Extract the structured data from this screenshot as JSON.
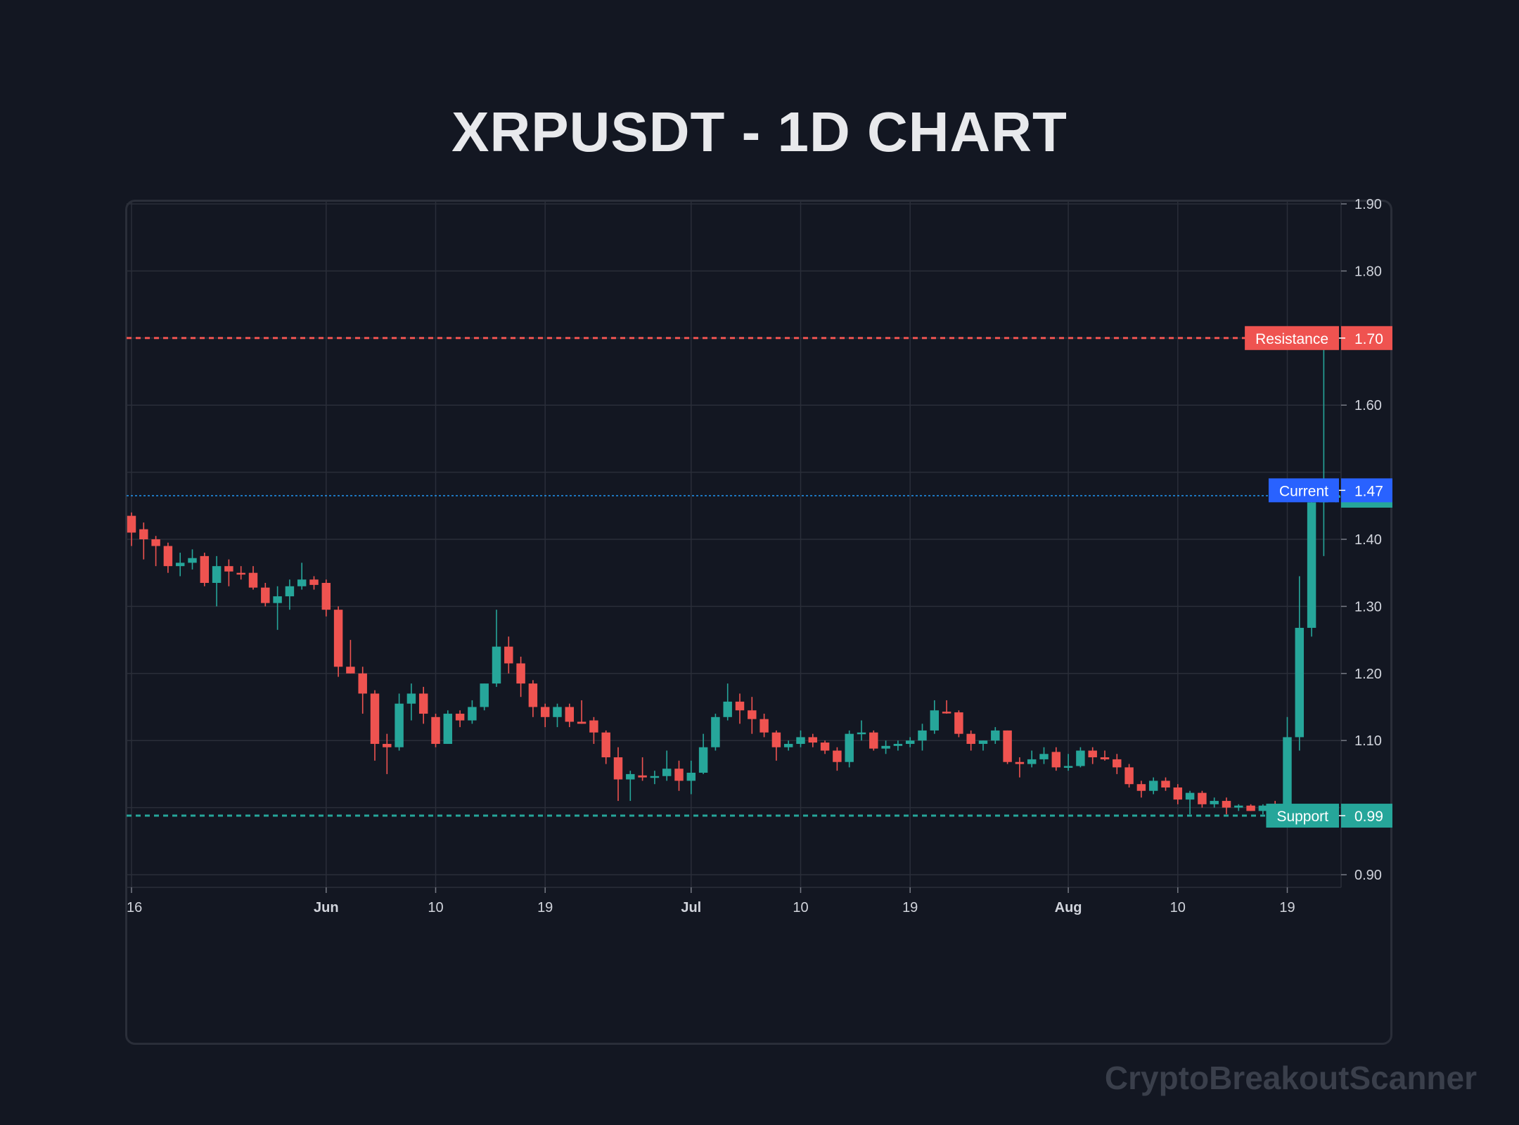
{
  "title": "XRPUSDT - 1D CHART",
  "watermark": "CryptoBreakoutScanner",
  "colors": {
    "background": "#131722",
    "grid": "#2a2e39",
    "up": "#26a69a",
    "down": "#ef5350",
    "resistance": "#ef5350",
    "support": "#26a69a",
    "current": "#2962ff",
    "last_price_line": "#2196f3"
  },
  "chart_data": {
    "type": "candlestick",
    "title": "XRPUSDT - 1D CHART",
    "xlabel": "",
    "ylabel": "",
    "ylim": [
      0.88,
      1.9
    ],
    "y_ticks": [
      "0.90",
      "1.10",
      "1.20",
      "1.30",
      "1.40",
      "1.60",
      "1.80",
      "1.90"
    ],
    "x_ticks": [
      {
        "label": "16",
        "index": 0,
        "major": false
      },
      {
        "label": "Jun",
        "index": 16,
        "major": true
      },
      {
        "label": "10",
        "index": 25,
        "major": false
      },
      {
        "label": "19",
        "index": 34,
        "major": false
      },
      {
        "label": "Jul",
        "index": 46,
        "major": true
      },
      {
        "label": "10",
        "index": 55,
        "major": false
      },
      {
        "label": "19",
        "index": 64,
        "major": false
      },
      {
        "label": "Aug",
        "index": 77,
        "major": true
      },
      {
        "label": "10",
        "index": 86,
        "major": false
      },
      {
        "label": "19",
        "index": 95,
        "major": false
      }
    ],
    "grid": true,
    "levels": [
      {
        "label": "Resistance",
        "value": 1.7,
        "value_label": "1.70",
        "style": "dashed",
        "color": "#ef5350"
      },
      {
        "label": "Support",
        "value": 0.988,
        "value_label": "0.99",
        "style": "dashed",
        "color": "#26a69a"
      },
      {
        "label": "Current",
        "value": 1.473,
        "value_label": "1.47",
        "style": "tag",
        "color": "#2962ff"
      }
    ],
    "last_price": {
      "value": 1.465,
      "value_label": "1.47"
    },
    "ohlc": [
      [
        1.435,
        1.44,
        1.39,
        1.41
      ],
      [
        1.415,
        1.425,
        1.37,
        1.4
      ],
      [
        1.4,
        1.405,
        1.36,
        1.39
      ],
      [
        1.39,
        1.395,
        1.35,
        1.36
      ],
      [
        1.36,
        1.38,
        1.345,
        1.365
      ],
      [
        1.365,
        1.385,
        1.355,
        1.372
      ],
      [
        1.375,
        1.38,
        1.33,
        1.335
      ],
      [
        1.335,
        1.375,
        1.3,
        1.36
      ],
      [
        1.36,
        1.37,
        1.33,
        1.352
      ],
      [
        1.35,
        1.36,
        1.34,
        1.348
      ],
      [
        1.35,
        1.36,
        1.325,
        1.328
      ],
      [
        1.328,
        1.335,
        1.3,
        1.305
      ],
      [
        1.305,
        1.33,
        1.265,
        1.315
      ],
      [
        1.315,
        1.34,
        1.295,
        1.33
      ],
      [
        1.33,
        1.365,
        1.325,
        1.34
      ],
      [
        1.34,
        1.345,
        1.325,
        1.332
      ],
      [
        1.335,
        1.34,
        1.285,
        1.295
      ],
      [
        1.295,
        1.3,
        1.195,
        1.21
      ],
      [
        1.21,
        1.25,
        1.2,
        1.2
      ],
      [
        1.2,
        1.21,
        1.14,
        1.17
      ],
      [
        1.17,
        1.175,
        1.07,
        1.095
      ],
      [
        1.095,
        1.11,
        1.05,
        1.09
      ],
      [
        1.09,
        1.17,
        1.085,
        1.155
      ],
      [
        1.155,
        1.185,
        1.13,
        1.17
      ],
      [
        1.17,
        1.18,
        1.125,
        1.14
      ],
      [
        1.135,
        1.14,
        1.09,
        1.095
      ],
      [
        1.095,
        1.145,
        1.095,
        1.14
      ],
      [
        1.14,
        1.145,
        1.12,
        1.13
      ],
      [
        1.13,
        1.16,
        1.125,
        1.15
      ],
      [
        1.15,
        1.185,
        1.145,
        1.185
      ],
      [
        1.185,
        1.295,
        1.18,
        1.24
      ],
      [
        1.24,
        1.255,
        1.2,
        1.215
      ],
      [
        1.215,
        1.225,
        1.165,
        1.185
      ],
      [
        1.185,
        1.19,
        1.135,
        1.15
      ],
      [
        1.15,
        1.155,
        1.12,
        1.135
      ],
      [
        1.135,
        1.155,
        1.12,
        1.15
      ],
      [
        1.15,
        1.155,
        1.12,
        1.128
      ],
      [
        1.128,
        1.16,
        1.125,
        1.125
      ],
      [
        1.13,
        1.135,
        1.095,
        1.112
      ],
      [
        1.112,
        1.115,
        1.065,
        1.075
      ],
      [
        1.075,
        1.09,
        1.01,
        1.042
      ],
      [
        1.042,
        1.055,
        1.01,
        1.05
      ],
      [
        1.048,
        1.075,
        1.04,
        1.045
      ],
      [
        1.045,
        1.055,
        1.035,
        1.047
      ],
      [
        1.047,
        1.085,
        1.04,
        1.058
      ],
      [
        1.058,
        1.07,
        1.025,
        1.04
      ],
      [
        1.04,
        1.07,
        1.02,
        1.052
      ],
      [
        1.052,
        1.11,
        1.05,
        1.09
      ],
      [
        1.09,
        1.14,
        1.085,
        1.135
      ],
      [
        1.135,
        1.185,
        1.13,
        1.158
      ],
      [
        1.158,
        1.17,
        1.125,
        1.145
      ],
      [
        1.145,
        1.165,
        1.11,
        1.132
      ],
      [
        1.132,
        1.14,
        1.105,
        1.112
      ],
      [
        1.112,
        1.115,
        1.07,
        1.09
      ],
      [
        1.09,
        1.1,
        1.085,
        1.095
      ],
      [
        1.095,
        1.115,
        1.09,
        1.105
      ],
      [
        1.105,
        1.11,
        1.09,
        1.097
      ],
      [
        1.097,
        1.1,
        1.08,
        1.085
      ],
      [
        1.085,
        1.09,
        1.055,
        1.068
      ],
      [
        1.068,
        1.115,
        1.06,
        1.11
      ],
      [
        1.11,
        1.13,
        1.1,
        1.112
      ],
      [
        1.112,
        1.115,
        1.085,
        1.088
      ],
      [
        1.088,
        1.1,
        1.08,
        1.092
      ],
      [
        1.092,
        1.1,
        1.085,
        1.095
      ],
      [
        1.095,
        1.105,
        1.09,
        1.1
      ],
      [
        1.1,
        1.125,
        1.085,
        1.115
      ],
      [
        1.115,
        1.16,
        1.11,
        1.145
      ],
      [
        1.143,
        1.16,
        1.14,
        1.142
      ],
      [
        1.142,
        1.145,
        1.105,
        1.11
      ],
      [
        1.11,
        1.115,
        1.085,
        1.095
      ],
      [
        1.095,
        1.1,
        1.085,
        1.1
      ],
      [
        1.1,
        1.12,
        1.095,
        1.115
      ],
      [
        1.115,
        1.115,
        1.065,
        1.068
      ],
      [
        1.068,
        1.075,
        1.045,
        1.065
      ],
      [
        1.065,
        1.085,
        1.06,
        1.072
      ],
      [
        1.072,
        1.09,
        1.065,
        1.08
      ],
      [
        1.083,
        1.09,
        1.055,
        1.06
      ],
      [
        1.06,
        1.08,
        1.055,
        1.062
      ],
      [
        1.062,
        1.09,
        1.06,
        1.085
      ],
      [
        1.085,
        1.09,
        1.065,
        1.075
      ],
      [
        1.075,
        1.085,
        1.07,
        1.072
      ],
      [
        1.072,
        1.08,
        1.05,
        1.06
      ],
      [
        1.06,
        1.065,
        1.03,
        1.035
      ],
      [
        1.035,
        1.04,
        1.015,
        1.025
      ],
      [
        1.025,
        1.045,
        1.02,
        1.04
      ],
      [
        1.04,
        1.045,
        1.025,
        1.03
      ],
      [
        1.03,
        1.035,
        1.005,
        1.012
      ],
      [
        1.012,
        1.025,
        0.99,
        1.022
      ],
      [
        1.022,
        1.025,
        1.0,
        1.005
      ],
      [
        1.005,
        1.015,
        1.0,
        1.01
      ],
      [
        1.01,
        1.015,
        0.99,
        1.0
      ],
      [
        1.0,
        1.005,
        0.995,
        1.003
      ],
      [
        1.003,
        1.005,
        0.995,
        0.995
      ],
      [
        0.995,
        1.005,
        0.99,
        1.003
      ],
      [
        1.0,
        1.01,
        0.99,
        0.995
      ],
      [
        0.995,
        1.135,
        0.99,
        1.105
      ],
      [
        1.105,
        1.345,
        1.085,
        1.268
      ],
      [
        1.268,
        1.465,
        1.255,
        1.455
      ],
      [
        1.455,
        1.7,
        1.375,
        1.462
      ],
      [
        1.462,
        1.472,
        1.455,
        1.465
      ]
    ]
  }
}
